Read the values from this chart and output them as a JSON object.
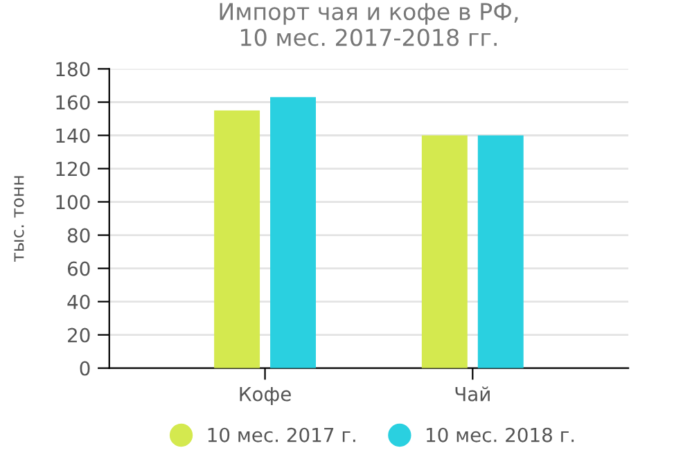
{
  "chart_data": {
    "type": "bar",
    "title": "Импорт чая и кофе в РФ,\n10 мес. 2017-2018 гг.",
    "ylabel": "тыс. тонн",
    "categories": [
      "Кофе",
      "Чай"
    ],
    "series": [
      {
        "name": "10 мес. 2017 г.",
        "color": "#d4e94f",
        "values": [
          155,
          140
        ]
      },
      {
        "name": "10 мес. 2018 г.",
        "color": "#2ad0e0",
        "values": [
          163,
          140
        ]
      }
    ],
    "ylim": [
      0,
      180
    ],
    "yticks": [
      0,
      20,
      40,
      60,
      80,
      100,
      120,
      140,
      160,
      180
    ],
    "grid": "y",
    "legend": "bottom"
  }
}
